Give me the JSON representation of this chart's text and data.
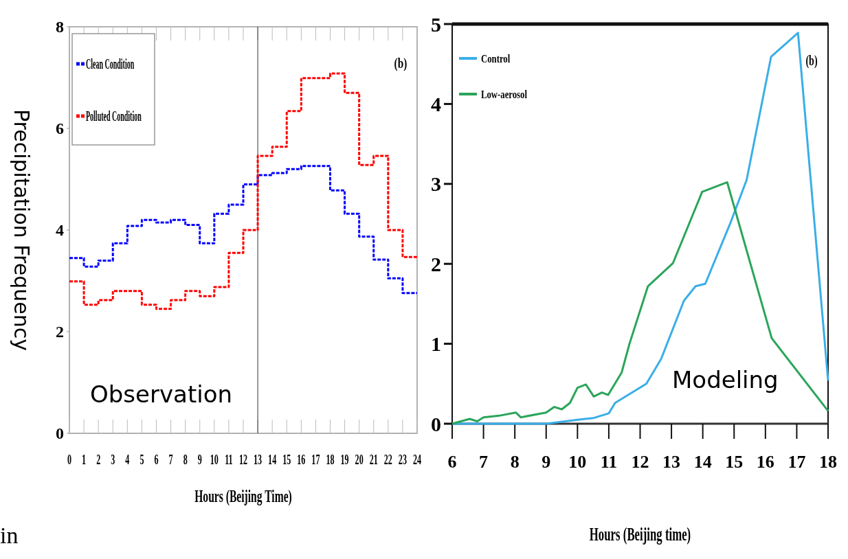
{
  "chart_data": [
    {
      "type": "step",
      "xlabel": "Hours (Beijing Time)",
      "ylabel": "Precipitation Frequency",
      "xlim": [
        0,
        24
      ],
      "ylim": [
        0,
        8
      ],
      "xticks": [
        0,
        1,
        2,
        3,
        4,
        5,
        6,
        7,
        8,
        9,
        10,
        11,
        12,
        13,
        14,
        15,
        16,
        17,
        18,
        19,
        20,
        21,
        22,
        23,
        24
      ],
      "yticks": [
        0,
        2,
        4,
        6,
        8
      ],
      "legend": "top left",
      "line_style": "dashed",
      "grid": false,
      "x": [
        0,
        1,
        2,
        3,
        4,
        5,
        6,
        7,
        8,
        9,
        10,
        11,
        12,
        13,
        14,
        15,
        16,
        17,
        18,
        19,
        20,
        21,
        22,
        23,
        24
      ],
      "series": [
        {
          "name": "Clean Condition",
          "color": "#0000ff",
          "values": [
            3.45,
            3.28,
            3.4,
            3.74,
            4.08,
            4.2,
            4.15,
            4.2,
            4.1,
            3.74,
            4.32,
            4.5,
            4.9,
            5.08,
            5.12,
            5.2,
            5.26,
            5.26,
            4.78,
            4.32,
            3.87,
            3.42,
            3.05,
            2.76,
            2.76
          ]
        },
        {
          "name": "Polluted Condition",
          "color": "#ff0000",
          "values": [
            2.99,
            2.53,
            2.62,
            2.8,
            2.8,
            2.53,
            2.45,
            2.62,
            2.8,
            2.7,
            2.88,
            3.55,
            4.0,
            5.46,
            5.64,
            6.34,
            6.99,
            6.99,
            7.08,
            6.7,
            5.28,
            5.46,
            4.0,
            3.47,
            3.47
          ]
        }
      ],
      "ref_lines": [
        {
          "axis": "x",
          "value": 13,
          "color": "#333333"
        }
      ],
      "annotations": [
        "(b)",
        "Observation",
        "in"
      ]
    },
    {
      "type": "line",
      "xlabel": "Hours (Beijing time)",
      "xlim": [
        6,
        18
      ],
      "ylim": [
        0,
        5
      ],
      "xticks": [
        6,
        7,
        8,
        9,
        10,
        11,
        12,
        13,
        14,
        15,
        16,
        17,
        18
      ],
      "yticks": [
        0,
        1,
        2,
        3,
        4,
        5
      ],
      "legend": "top left",
      "line_style": "solid",
      "grid": false,
      "series": [
        {
          "name": "Control",
          "color": "#3aaee8",
          "x": [
            6,
            7,
            8,
            9,
            10,
            10.5,
            11,
            11.2,
            12.2,
            12.67,
            13.4,
            13.77,
            14.08,
            14.86,
            15.4,
            16.18,
            17.04,
            18
          ],
          "values": [
            0,
            0,
            0,
            0,
            0.05,
            0.07,
            0.13,
            0.26,
            0.5,
            0.81,
            1.54,
            1.72,
            1.75,
            2.49,
            3.05,
            4.59,
            4.89,
            0.54
          ]
        },
        {
          "name": "Low-aerosol",
          "color": "#2aa55a",
          "x": [
            6,
            6.56,
            6.8,
            7,
            7.5,
            8.03,
            8.19,
            9,
            9.26,
            9.5,
            9.76,
            10,
            10.27,
            10.52,
            10.78,
            10.98,
            11.41,
            11.66,
            12.25,
            13.05,
            13.98,
            14.78,
            16.2,
            18
          ],
          "values": [
            0,
            0.06,
            0.03,
            0.08,
            0.1,
            0.14,
            0.08,
            0.14,
            0.21,
            0.18,
            0.26,
            0.45,
            0.49,
            0.34,
            0.39,
            0.36,
            0.64,
            1.0,
            1.72,
            2.01,
            2.9,
            3.02,
            1.07,
            0.16
          ]
        }
      ],
      "annotations": [
        "(b)",
        "Modeling"
      ]
    }
  ]
}
